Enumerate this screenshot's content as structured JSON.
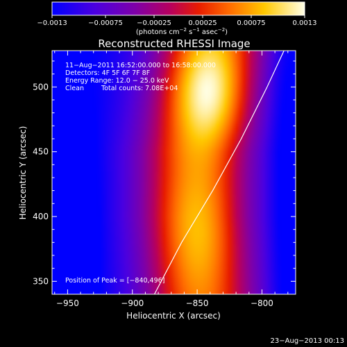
{
  "chart_data": {
    "type": "heatmap",
    "title": "Reconstructed RHESSI Image",
    "xlabel": "Heliocentric X (arcsec)",
    "ylabel": "Heliocentric Y (arcsec)",
    "xlim": [
      -962,
      -774
    ],
    "ylim": [
      340,
      528
    ],
    "xticks": [
      -950,
      -900,
      -850,
      -800
    ],
    "yticks": [
      350,
      400,
      450,
      500
    ],
    "xtick_labels": [
      "−950",
      "−900",
      "−850",
      "−800"
    ],
    "ytick_labels": [
      "350",
      "400",
      "450",
      "500"
    ],
    "colorbar": {
      "range": [
        -0.0013,
        0.0013
      ],
      "ticks": [
        -0.0013,
        -0.00075,
        -0.00025,
        0.00025,
        0.00075,
        0.0013
      ],
      "tick_labels": [
        "−0.0013",
        "−0.00075",
        "−0.00025",
        "0.00025",
        "0.00075",
        "0.0013"
      ],
      "units_text": "(photons cm",
      "units_exp1": "−2",
      "units_mid1": " s",
      "units_exp2": "−1",
      "units_mid2": " asec",
      "units_exp3": "−2",
      "units_end": ")"
    },
    "annotations": {
      "time_range": "11−Aug−2011 16:52:00.000 to 16:58:00.000",
      "detectors": "Detectors: 4F 5F 6F 7F 8F",
      "energy_range": "Energy Range: 12.0 − 25.0 keV",
      "clean": "Clean",
      "total_counts": "Total counts: 7.08E+04",
      "peak_position": "Position of Peak = [−840,496]"
    },
    "peak": {
      "x": -840,
      "y": 496,
      "value": 0.0013
    },
    "limb": [
      {
        "x": -883,
        "y": 340
      },
      {
        "x": -862,
        "y": 380
      },
      {
        "x": -838,
        "y": 420
      },
      {
        "x": -816,
        "y": 460
      },
      {
        "x": -796,
        "y": 500
      },
      {
        "x": -783,
        "y": 528
      }
    ],
    "emission_model": {
      "ridge": [
        {
          "y": 340,
          "x": -848
        },
        {
          "y": 400,
          "x": -852
        },
        {
          "y": 450,
          "x": -852
        },
        {
          "y": 500,
          "x": -845
        },
        {
          "y": 528,
          "x": -840
        }
      ],
      "bright_source": {
        "x": -840,
        "y": 496,
        "sigma_x": 20,
        "sigma_y": 30,
        "value": 0.00095
      },
      "lower_source": {
        "x": -848,
        "y": 390,
        "sigma_x": 20,
        "sigma_y": 35,
        "value": 0.0004
      },
      "background_min": -0.0013
    },
    "grid": false
  },
  "footer": {
    "date": "23−Aug−2013 00:13"
  }
}
